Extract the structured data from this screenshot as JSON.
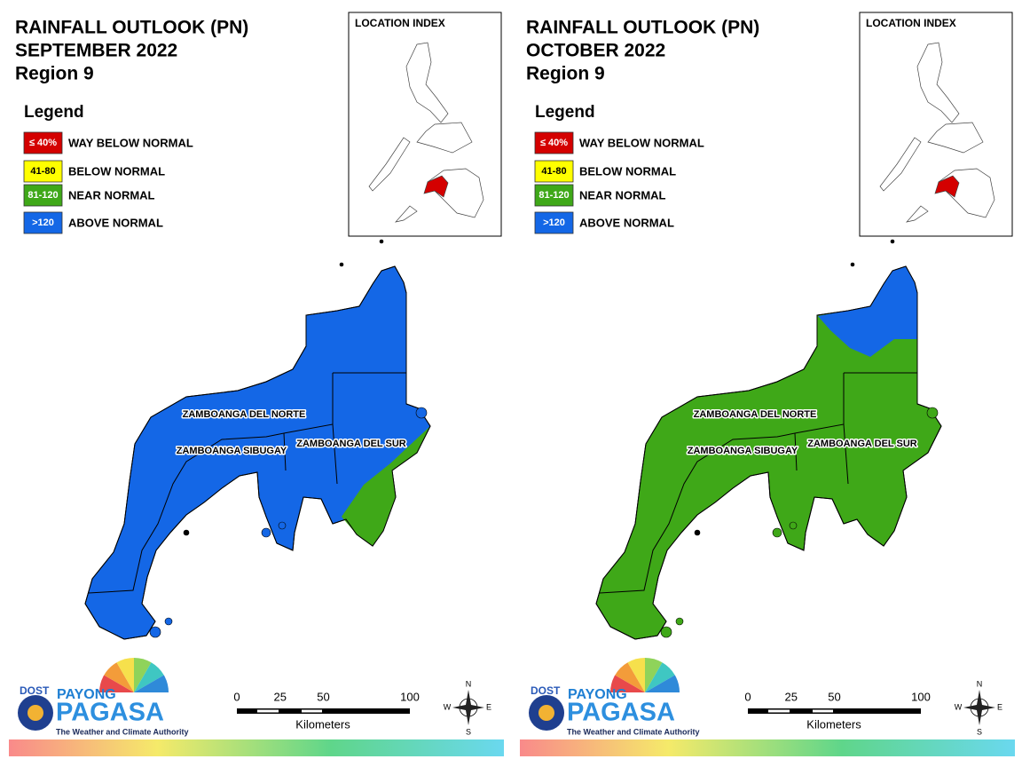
{
  "panels": [
    {
      "title": "RAINFALL OUTLOOK (PN)",
      "month": "SEPTEMBER 2022",
      "region": "Region 9",
      "legend_title": "Legend",
      "legend": [
        {
          "range": "≤ 40%",
          "label": "WAY BELOW NORMAL",
          "color": "#d40000"
        },
        {
          "range": "41-80",
          "label": "BELOW NORMAL",
          "color": "#ffff00"
        },
        {
          "range": "81-120",
          "label": "NEAR NORMAL",
          "color": "#3fa818"
        },
        {
          "range": ">120",
          "label": "ABOVE NORMAL",
          "color": "#1467e6"
        }
      ],
      "map_color": "#1467e6",
      "zone_color": "#3fa818",
      "location_index": "LOCATION INDEX",
      "provinces": [
        "ZAMBOANGA DEL NORTE",
        "ZAMBOANGA SIBUGAY",
        "ZAMBOANGA DEL SUR"
      ],
      "scale": {
        "ticks": [
          0,
          25,
          50,
          100
        ],
        "unit": "Kilometers"
      },
      "compass": {
        "n": "N",
        "e": "E",
        "s": "S",
        "w": "W"
      },
      "logo": {
        "agency": "DOST",
        "name": "PAYONG",
        "brand": "PAGASA",
        "tagline": "The Weather and Climate Authority"
      }
    },
    {
      "title": "RAINFALL OUTLOOK (PN)",
      "month": "OCTOBER 2022",
      "region": "Region 9",
      "legend_title": "Legend",
      "legend": [
        {
          "range": "≤ 40%",
          "label": "WAY BELOW NORMAL",
          "color": "#d40000"
        },
        {
          "range": "41-80",
          "label": "BELOW NORMAL",
          "color": "#ffff00"
        },
        {
          "range": "81-120",
          "label": "NEAR NORMAL",
          "color": "#3fa818"
        },
        {
          "range": ">120",
          "label": "ABOVE NORMAL",
          "color": "#1467e6"
        }
      ],
      "map_color": "#3fa818",
      "zone_color": "#1467e6",
      "location_index": "LOCATION INDEX",
      "provinces": [
        "ZAMBOANGA DEL NORTE",
        "ZAMBOANGA SIBUGAY",
        "ZAMBOANGA DEL SUR"
      ],
      "scale": {
        "ticks": [
          0,
          25,
          50,
          100
        ],
        "unit": "Kilometers"
      },
      "compass": {
        "n": "N",
        "e": "E",
        "s": "S",
        "w": "W"
      },
      "logo": {
        "agency": "DOST",
        "name": "PAYONG",
        "brand": "PAGASA",
        "tagline": "The Weather and Climate Authority"
      }
    }
  ]
}
